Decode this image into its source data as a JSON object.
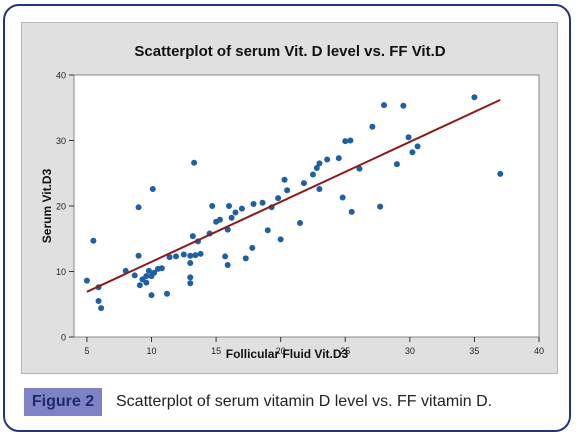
{
  "figure": {
    "label": "Figure 2",
    "caption": "Scatterplot of serum vitamin D level vs. FF vitamin D."
  },
  "chart_data": {
    "type": "scatter",
    "title": "Scatterplot of serum Vit. D level vs. FF Vit.D",
    "xlabel": "Follicular Fluid Vit.D3",
    "ylabel": "Serum Vit.D3",
    "xlim": [
      4,
      40
    ],
    "ylim": [
      0,
      40
    ],
    "xticks": [
      "5",
      "10",
      "15",
      "20",
      "25",
      "30",
      "35",
      "40"
    ],
    "yticks": [
      "0",
      "10",
      "20",
      "30",
      "40"
    ],
    "grid": false,
    "colors": {
      "points": "#1f5fa3",
      "fit_line": "#8b1a1a",
      "plot_bg": "#ffffff",
      "panel_bg": "#e0e0e0"
    },
    "points": [
      [
        5.0,
        8.6
      ],
      [
        5.5,
        14.7
      ],
      [
        5.9,
        7.6
      ],
      [
        5.9,
        5.5
      ],
      [
        6.1,
        4.4
      ],
      [
        8.0,
        10.1
      ],
      [
        8.7,
        9.4
      ],
      [
        9.0,
        12.4
      ],
      [
        9.0,
        19.8
      ],
      [
        9.1,
        7.9
      ],
      [
        9.3,
        8.8
      ],
      [
        9.6,
        9.3
      ],
      [
        9.6,
        8.3
      ],
      [
        9.8,
        10.1
      ],
      [
        10.0,
        9.3
      ],
      [
        10.0,
        6.4
      ],
      [
        10.1,
        22.6
      ],
      [
        10.2,
        9.8
      ],
      [
        10.5,
        10.4
      ],
      [
        10.8,
        10.5
      ],
      [
        11.2,
        6.6
      ],
      [
        11.4,
        12.2
      ],
      [
        11.9,
        12.3
      ],
      [
        12.5,
        12.6
      ],
      [
        13.0,
        8.2
      ],
      [
        13.0,
        9.1
      ],
      [
        13.0,
        11.3
      ],
      [
        13.0,
        12.4
      ],
      [
        13.2,
        15.4
      ],
      [
        13.3,
        26.6
      ],
      [
        13.4,
        12.5
      ],
      [
        13.8,
        12.7
      ],
      [
        13.6,
        14.6
      ],
      [
        14.5,
        15.8
      ],
      [
        14.7,
        20.0
      ],
      [
        15.0,
        17.6
      ],
      [
        15.3,
        17.9
      ],
      [
        15.7,
        12.3
      ],
      [
        15.9,
        11.0
      ],
      [
        15.9,
        16.4
      ],
      [
        16.0,
        20.0
      ],
      [
        16.2,
        18.2
      ],
      [
        16.5,
        19.0
      ],
      [
        17.0,
        19.6
      ],
      [
        17.3,
        12.0
      ],
      [
        17.9,
        20.3
      ],
      [
        17.8,
        13.6
      ],
      [
        18.6,
        20.5
      ],
      [
        19.0,
        16.3
      ],
      [
        19.3,
        19.8
      ],
      [
        19.8,
        21.2
      ],
      [
        20.0,
        14.9
      ],
      [
        20.3,
        24.0
      ],
      [
        20.5,
        22.4
      ],
      [
        21.5,
        17.4
      ],
      [
        21.8,
        23.5
      ],
      [
        22.5,
        24.8
      ],
      [
        22.8,
        25.8
      ],
      [
        23.0,
        22.6
      ],
      [
        23.0,
        26.5
      ],
      [
        23.6,
        27.1
      ],
      [
        24.5,
        27.3
      ],
      [
        24.8,
        21.3
      ],
      [
        25.0,
        29.9
      ],
      [
        25.4,
        30.0
      ],
      [
        25.5,
        19.1
      ],
      [
        26.1,
        25.7
      ],
      [
        27.1,
        32.1
      ],
      [
        27.7,
        19.9
      ],
      [
        28.0,
        35.4
      ],
      [
        29.0,
        26.4
      ],
      [
        29.5,
        35.3
      ],
      [
        29.9,
        30.5
      ],
      [
        30.2,
        28.2
      ],
      [
        30.6,
        29.1
      ],
      [
        35.0,
        36.6
      ],
      [
        37.0,
        24.9
      ]
    ],
    "fit_line": [
      [
        5.0,
        6.9
      ],
      [
        37.0,
        36.2
      ]
    ]
  }
}
